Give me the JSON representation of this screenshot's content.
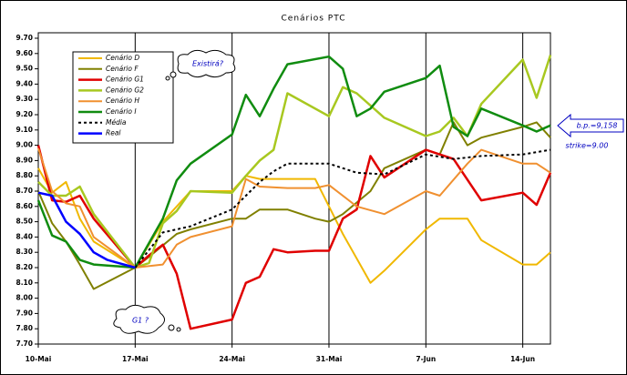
{
  "chart_data": {
    "type": "line",
    "title": "Cenários PTC",
    "xlim": [
      0,
      37
    ],
    "xticks": [
      {
        "value": 0,
        "label": "10-Mai"
      },
      {
        "value": 7,
        "label": "17-Mai"
      },
      {
        "value": 14,
        "label": "24-Mai"
      },
      {
        "value": 21,
        "label": "31-Mai"
      },
      {
        "value": 28,
        "label": "7-Jun"
      },
      {
        "value": 35,
        "label": "14-Jun"
      }
    ],
    "ylim": [
      7.7,
      9.7
    ],
    "yticks": [
      {
        "value": 7.7,
        "label": "7.70"
      },
      {
        "value": 7.8,
        "label": "7.80"
      },
      {
        "value": 7.9,
        "label": "7.90"
      },
      {
        "value": 8.0,
        "label": "8.00"
      },
      {
        "value": 8.1,
        "label": "8.10"
      },
      {
        "value": 8.2,
        "label": "8.20"
      },
      {
        "value": 8.3,
        "label": "8.30"
      },
      {
        "value": 8.4,
        "label": "8.40"
      },
      {
        "value": 8.5,
        "label": "8.50"
      },
      {
        "value": 8.6,
        "label": "8.60"
      },
      {
        "value": 8.7,
        "label": "8.70"
      },
      {
        "value": 8.8,
        "label": "8.80"
      },
      {
        "value": 8.9,
        "label": "8.90"
      },
      {
        "value": 9.0,
        "label": "9.00"
      },
      {
        "value": 9.1,
        "label": "9.10"
      },
      {
        "value": 9.2,
        "label": "9.20"
      },
      {
        "value": 9.3,
        "label": "9.30"
      },
      {
        "value": 9.4,
        "label": "9.40"
      },
      {
        "value": 9.5,
        "label": "9.50"
      },
      {
        "value": 9.6,
        "label": "9.60"
      },
      {
        "value": 9.7,
        "label": "9.70"
      }
    ],
    "grid": "x",
    "legend": "upper left",
    "series": [
      {
        "name": "Cenário D",
        "color": "#f0b800",
        "width": 2,
        "x": [
          0,
          1,
          2,
          3,
          4,
          7,
          9,
          11,
          14,
          15,
          16,
          18,
          20,
          22,
          24,
          25,
          28,
          29,
          31,
          32,
          35,
          36,
          37
        ],
        "values": [
          8.85,
          8.69,
          8.76,
          8.52,
          8.37,
          8.2,
          8.5,
          8.7,
          8.7,
          8.8,
          8.78,
          8.78,
          8.78,
          8.42,
          8.1,
          8.18,
          8.45,
          8.52,
          8.52,
          8.38,
          8.22,
          8.22,
          8.3
        ]
      },
      {
        "name": "Cenário F",
        "color": "#808000",
        "width": 2,
        "x": [
          0,
          1,
          2,
          3,
          4,
          7,
          8,
          10,
          11,
          14,
          15,
          16,
          18,
          20,
          21,
          22,
          24,
          25,
          28,
          29,
          30,
          31,
          32,
          35,
          36,
          37
        ],
        "values": [
          8.7,
          8.49,
          8.37,
          8.22,
          8.06,
          8.2,
          8.27,
          8.42,
          8.45,
          8.52,
          8.52,
          8.58,
          8.58,
          8.52,
          8.5,
          8.55,
          8.7,
          8.85,
          8.97,
          8.94,
          9.15,
          9.0,
          9.05,
          9.12,
          9.15,
          9.05
        ]
      },
      {
        "name": "Cenário G1",
        "color": "#e00000",
        "width": 2.5,
        "x": [
          0,
          1,
          2,
          3,
          4,
          7,
          8,
          9,
          10,
          11,
          14,
          15,
          16,
          17,
          18,
          20,
          21,
          22,
          23,
          24,
          25,
          28,
          30,
          32,
          35,
          36,
          37
        ],
        "values": [
          9.0,
          8.64,
          8.63,
          8.67,
          8.52,
          8.2,
          8.28,
          8.35,
          8.16,
          7.8,
          7.86,
          8.1,
          8.14,
          8.32,
          8.3,
          8.31,
          8.31,
          8.52,
          8.58,
          8.93,
          8.79,
          8.97,
          8.91,
          8.64,
          8.69,
          8.61,
          8.82
        ]
      },
      {
        "name": "Cenário G2",
        "color": "#a8c820",
        "width": 2.5,
        "x": [
          0,
          1,
          2,
          3,
          4,
          7,
          8,
          9,
          10,
          11,
          14,
          15,
          16,
          17,
          18,
          21,
          22,
          23,
          25,
          28,
          29,
          30,
          31,
          32,
          35,
          36,
          37
        ],
        "values": [
          8.76,
          8.67,
          8.67,
          8.73,
          8.55,
          8.2,
          8.23,
          8.49,
          8.57,
          8.7,
          8.69,
          8.8,
          8.9,
          8.97,
          9.34,
          9.19,
          9.38,
          9.34,
          9.18,
          9.06,
          9.09,
          9.18,
          9.06,
          9.27,
          9.56,
          9.31,
          9.59
        ]
      },
      {
        "name": "Cenário H",
        "color": "#f09030",
        "width": 2,
        "x": [
          0,
          1,
          2,
          3,
          4,
          7,
          9,
          10,
          11,
          14,
          15,
          16,
          18,
          20,
          21,
          23,
          25,
          28,
          29,
          31,
          32,
          35,
          36,
          37
        ],
        "values": [
          8.98,
          8.7,
          8.62,
          8.6,
          8.4,
          8.2,
          8.22,
          8.35,
          8.4,
          8.47,
          8.78,
          8.73,
          8.72,
          8.72,
          8.74,
          8.6,
          8.55,
          8.7,
          8.67,
          8.88,
          8.97,
          8.88,
          8.88,
          8.82
        ]
      },
      {
        "name": "Cenário I",
        "color": "#108c10",
        "width": 2.5,
        "x": [
          0,
          1,
          2,
          3,
          4,
          7,
          9,
          10,
          11,
          14,
          15,
          16,
          17,
          18,
          21,
          22,
          23,
          24,
          25,
          28,
          29,
          30,
          31,
          32,
          35,
          36,
          37
        ],
        "values": [
          8.64,
          8.41,
          8.37,
          8.25,
          8.22,
          8.2,
          8.52,
          8.77,
          8.88,
          9.07,
          9.33,
          9.19,
          9.37,
          9.53,
          9.58,
          9.5,
          9.19,
          9.24,
          9.35,
          9.44,
          9.52,
          9.12,
          9.06,
          9.24,
          9.13,
          9.09,
          9.13
        ]
      },
      {
        "name": "Média",
        "color": "#000000",
        "width": 2,
        "dashed": true,
        "x": [
          7,
          9,
          11,
          14,
          15,
          16,
          17,
          18,
          21,
          23,
          25,
          28,
          30,
          32,
          35,
          37
        ],
        "values": [
          8.2,
          8.43,
          8.47,
          8.58,
          8.67,
          8.76,
          8.83,
          8.88,
          8.88,
          8.82,
          8.81,
          8.94,
          8.91,
          8.93,
          8.94,
          8.97
        ]
      },
      {
        "name": "Real",
        "color": "#0000ff",
        "width": 2.5,
        "x": [
          0,
          1,
          2,
          3,
          4,
          5,
          7
        ],
        "values": [
          8.69,
          8.67,
          8.5,
          8.42,
          8.3,
          8.25,
          8.2
        ]
      }
    ],
    "annotations": {
      "existira": "Existirá?",
      "g1": "G1 ?",
      "bp": "b.p.=9,158",
      "strike": "strike=9.00"
    }
  }
}
